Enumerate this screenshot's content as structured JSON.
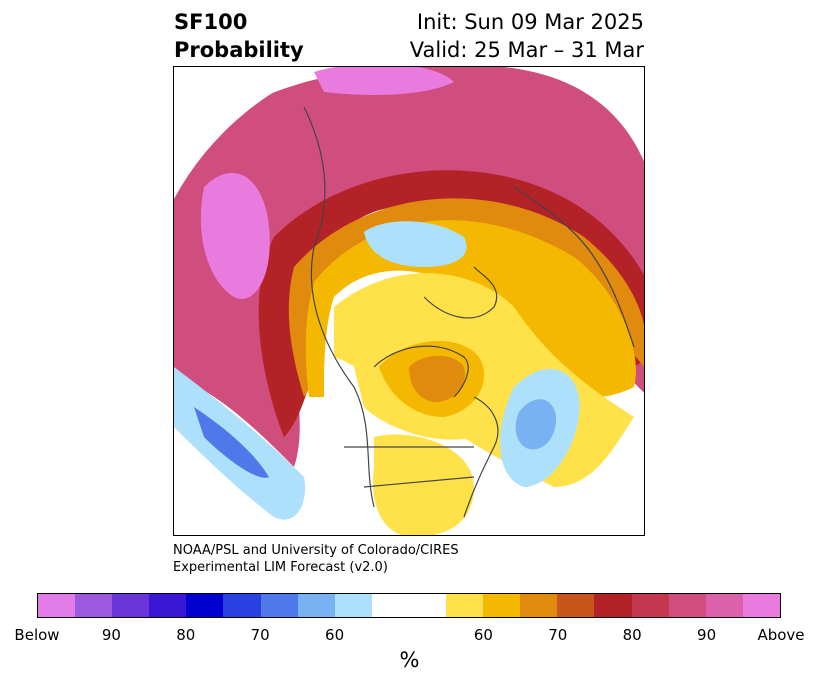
{
  "header": {
    "variable": "SF100",
    "product": "Probability",
    "init": "Init: Sun 09 Mar 2025",
    "valid": "Valid: 25 Mar – 31 Mar"
  },
  "credit": {
    "line1": "NOAA/PSL and University of Colorado/CIRES",
    "line2": "Experimental LIM Forecast (v2.0)"
  },
  "colorbar": {
    "unit": "%",
    "tick_labels": [
      "Below",
      "90",
      "80",
      "70",
      "60",
      "60",
      "70",
      "80",
      "90",
      "Above"
    ],
    "below_colors": [
      "#e07be8",
      "#9b59e0",
      "#6a35d8",
      "#3a17d4",
      "#0000d0",
      "#2a40e0",
      "#4f78ea",
      "#78b2f2",
      "#ade0fb"
    ],
    "neutral_color": "#ffffff",
    "above_colors": [
      "#ffe24a",
      "#f5b800",
      "#e08a0e",
      "#c8551b",
      "#b32226",
      "#c4384f",
      "#cf4e7e",
      "#db61aa",
      "#e97bdf"
    ]
  }
}
